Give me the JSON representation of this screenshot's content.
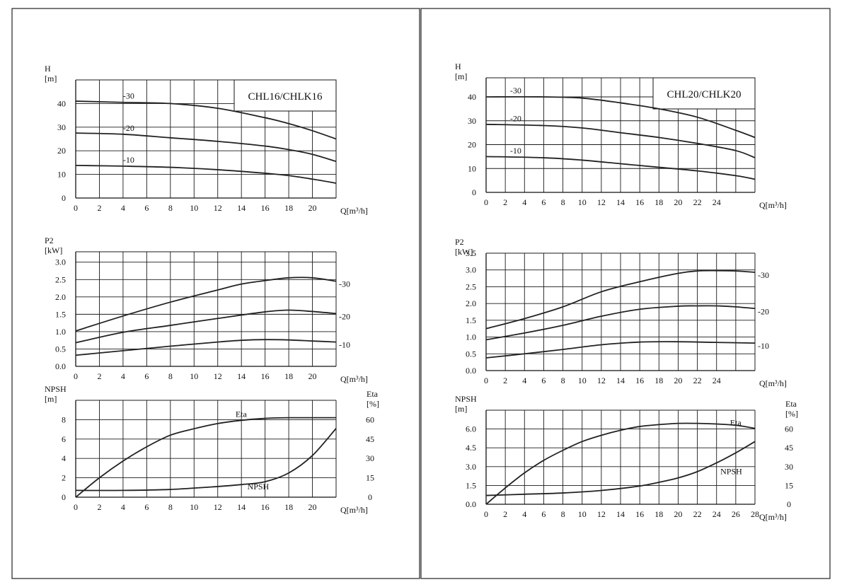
{
  "chart_data": [
    {
      "type": "line",
      "title": "CHL16/CHLK16",
      "xlabel": "Q[m³/h]",
      "ylabel": "H [m]",
      "xlim": [
        0,
        22
      ],
      "ylim": [
        0,
        50
      ],
      "x_ticks": [
        0,
        2,
        4,
        6,
        8,
        10,
        12,
        14,
        16,
        18,
        20
      ],
      "y_ticks": [
        0,
        10,
        20,
        30,
        40
      ],
      "grid": true,
      "series": [
        {
          "name": "-30",
          "x": [
            0,
            4,
            8,
            12,
            16,
            18,
            20,
            22
          ],
          "values": [
            41,
            40.5,
            40,
            38,
            34,
            31.5,
            28.5,
            25
          ]
        },
        {
          "name": "-20",
          "x": [
            0,
            4,
            8,
            12,
            16,
            18,
            20,
            22
          ],
          "values": [
            27.5,
            27,
            25.5,
            24,
            22,
            20.5,
            18.5,
            15.5
          ]
        },
        {
          "name": "-10",
          "x": [
            0,
            4,
            8,
            12,
            16,
            18,
            20,
            22
          ],
          "values": [
            13.8,
            13.5,
            13,
            12,
            10.5,
            9.5,
            8,
            6.3
          ]
        }
      ],
      "series_labels_x": [
        4,
        4,
        4
      ]
    },
    {
      "type": "line",
      "title": "",
      "xlabel": "Q[m³/h]",
      "ylabel": "P2 [kW]",
      "xlim": [
        0,
        22
      ],
      "ylim": [
        0,
        3.3
      ],
      "x_ticks": [
        0,
        2,
        4,
        6,
        8,
        10,
        12,
        14,
        16,
        18,
        20
      ],
      "y_ticks": [
        0.0,
        0.5,
        1.0,
        1.5,
        2.0,
        2.5,
        3.0
      ],
      "y_tick_labels": [
        "0.0",
        "0.5",
        "1.0",
        "1.5",
        "2.0",
        "2.5",
        "3.0"
      ],
      "grid": true,
      "series": [
        {
          "name": "-30",
          "x": [
            0,
            4,
            8,
            12,
            14,
            16,
            18,
            20,
            22
          ],
          "values": [
            1.02,
            1.45,
            1.85,
            2.2,
            2.37,
            2.47,
            2.55,
            2.55,
            2.45
          ]
        },
        {
          "name": "-20",
          "x": [
            0,
            4,
            8,
            12,
            16,
            18,
            20,
            22
          ],
          "values": [
            0.68,
            0.98,
            1.18,
            1.38,
            1.57,
            1.62,
            1.58,
            1.52
          ]
        },
        {
          "name": "-10",
          "x": [
            0,
            4,
            8,
            12,
            14,
            16,
            18,
            20,
            22
          ],
          "values": [
            0.32,
            0.45,
            0.58,
            0.7,
            0.75,
            0.77,
            0.76,
            0.73,
            0.7
          ]
        }
      ],
      "series_labels_right": true
    },
    {
      "type": "line",
      "title": "",
      "xlabel": "Q[m³/h]",
      "ylabel": "NPSH [m]",
      "y2label": "Eta [%]",
      "xlim": [
        0,
        22
      ],
      "ylim": [
        0,
        10
      ],
      "y2lim": [
        0,
        75
      ],
      "x_ticks": [
        0,
        2,
        4,
        6,
        8,
        10,
        12,
        14,
        16,
        18,
        20
      ],
      "y_ticks": [
        0,
        2,
        4,
        6,
        8
      ],
      "y2_ticks": [
        0,
        15,
        30,
        45,
        60
      ],
      "grid": true,
      "series": [
        {
          "name": "Eta",
          "axis": "y2",
          "x": [
            0,
            2,
            4,
            6,
            8,
            10,
            12,
            14,
            16,
            18,
            20,
            22
          ],
          "values": [
            0,
            15,
            28,
            39,
            48,
            53,
            57,
            59.5,
            61,
            61.5,
            61.5,
            61.5
          ]
        },
        {
          "name": "NPSH",
          "axis": "y",
          "x": [
            0,
            4,
            8,
            12,
            14,
            16,
            18,
            20,
            22
          ],
          "values": [
            0.7,
            0.7,
            0.8,
            1.1,
            1.3,
            1.6,
            2.5,
            4.3,
            7.1
          ]
        }
      ],
      "label_pos": {
        "Eta": [
          13.5,
          8.3
        ],
        "NPSH": [
          14.5,
          0.8
        ]
      }
    },
    {
      "type": "line",
      "title": "CHL20/CHLK20",
      "xlabel": "Q[m³/h]",
      "ylabel": "H [m]",
      "xlim": [
        0,
        28
      ],
      "ylim": [
        0,
        48
      ],
      "x_ticks": [
        0,
        2,
        4,
        6,
        8,
        10,
        12,
        14,
        16,
        18,
        20,
        22,
        24
      ],
      "y_ticks": [
        0,
        10,
        20,
        30,
        40
      ],
      "grid": true,
      "series": [
        {
          "name": "-30",
          "x": [
            0,
            6,
            10,
            14,
            18,
            22,
            26,
            28
          ],
          "values": [
            40,
            40,
            39.5,
            37.5,
            35,
            31.5,
            26,
            23
          ]
        },
        {
          "name": "-20",
          "x": [
            0,
            6,
            10,
            14,
            18,
            22,
            26,
            28
          ],
          "values": [
            28.5,
            28,
            27,
            25,
            23,
            20.5,
            17.5,
            14.5
          ]
        },
        {
          "name": "-10",
          "x": [
            0,
            6,
            10,
            14,
            18,
            22,
            26,
            28
          ],
          "values": [
            15,
            14.5,
            13.5,
            12,
            10.5,
            9,
            7,
            5.5
          ]
        }
      ],
      "series_labels_x": [
        2.5,
        2.5,
        2.5
      ]
    },
    {
      "type": "line",
      "title": "",
      "xlabel": "Q[m³/h]",
      "ylabel": "P2 [kW]",
      "xlim": [
        0,
        28
      ],
      "ylim": [
        0,
        3.5
      ],
      "x_ticks": [
        0,
        2,
        4,
        6,
        8,
        10,
        12,
        14,
        16,
        18,
        20,
        22,
        24
      ],
      "y_ticks": [
        0.0,
        0.5,
        1.0,
        1.5,
        2.0,
        2.5,
        3.0,
        3.5
      ],
      "y_tick_labels": [
        "0.0",
        "0.5",
        "1.0",
        "1.5",
        "2.0",
        "2.5",
        "3.0",
        "3.5"
      ],
      "grid": true,
      "series": [
        {
          "name": "-30",
          "x": [
            0,
            4,
            8,
            12,
            16,
            20,
            22,
            24,
            26,
            28
          ],
          "values": [
            1.25,
            1.55,
            1.9,
            2.35,
            2.65,
            2.9,
            2.97,
            2.98,
            2.97,
            2.93
          ]
        },
        {
          "name": "-20",
          "x": [
            0,
            4,
            8,
            12,
            16,
            20,
            22,
            24,
            26,
            28
          ],
          "values": [
            0.92,
            1.12,
            1.35,
            1.62,
            1.83,
            1.92,
            1.93,
            1.93,
            1.9,
            1.85
          ]
        },
        {
          "name": "-10",
          "x": [
            0,
            4,
            8,
            12,
            16,
            20,
            24,
            28
          ],
          "values": [
            0.38,
            0.5,
            0.63,
            0.77,
            0.85,
            0.86,
            0.84,
            0.82
          ]
        }
      ],
      "series_labels_right": true
    },
    {
      "type": "line",
      "title": "",
      "xlabel": "Q[m³/h]",
      "ylabel": "NPSH [m]",
      "y2label": "Eta [%]",
      "xlim": [
        0,
        28
      ],
      "ylim": [
        0,
        7.5
      ],
      "y2lim": [
        0,
        75
      ],
      "x_ticks": [
        0,
        2,
        4,
        6,
        8,
        10,
        12,
        14,
        16,
        18,
        20,
        22,
        24,
        26,
        28
      ],
      "y_ticks": [
        0.0,
        1.5,
        3.0,
        4.5,
        6.0
      ],
      "y_tick_labels": [
        "0.0",
        "1.5",
        "3.0",
        "4.5",
        "6.0"
      ],
      "y2_ticks": [
        0,
        15,
        30,
        45,
        60
      ],
      "grid": true,
      "series": [
        {
          "name": "Eta",
          "axis": "y2",
          "x": [
            0,
            2,
            4,
            6,
            8,
            10,
            12,
            14,
            16,
            18,
            20,
            22,
            24,
            26,
            28
          ],
          "values": [
            0,
            13,
            25,
            35,
            43,
            50,
            55,
            59,
            62,
            63.5,
            64.5,
            64.5,
            64,
            63,
            60.5
          ]
        },
        {
          "name": "NPSH",
          "axis": "y",
          "x": [
            0,
            4,
            8,
            12,
            16,
            18,
            20,
            22,
            24,
            26,
            28
          ],
          "values": [
            0.7,
            0.8,
            0.9,
            1.1,
            1.45,
            1.75,
            2.1,
            2.6,
            3.3,
            4.1,
            5.0
          ]
        }
      ],
      "label_pos": {
        "Eta": [
          25.4,
          6.3
        ],
        "NPSH": [
          24.4,
          2.4
        ]
      }
    }
  ]
}
